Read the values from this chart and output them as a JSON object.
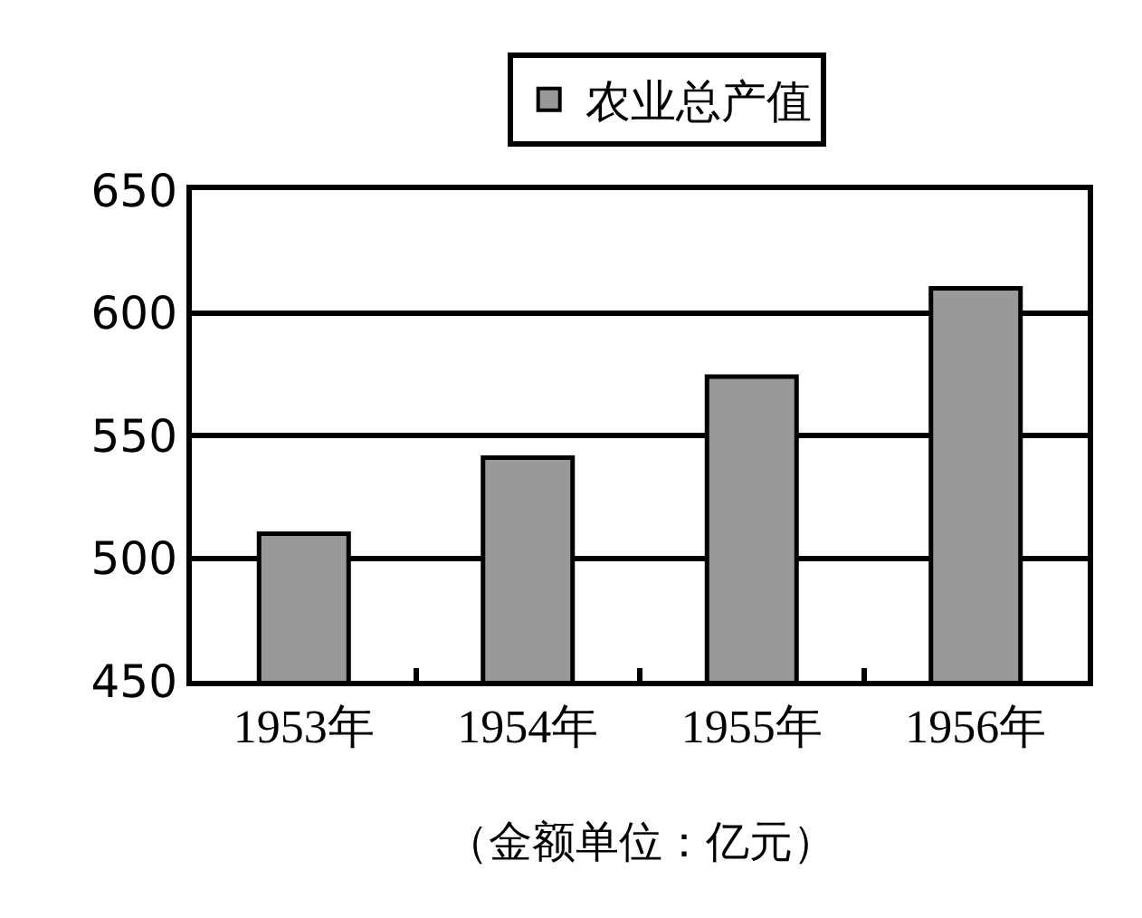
{
  "chart_data": {
    "type": "bar",
    "categories": [
      "1953年",
      "1954年",
      "1955年",
      "1956年"
    ],
    "series": [
      {
        "name": "农业总产值",
        "color": "#999999",
        "values": [
          510,
          541,
          574,
          610
        ]
      }
    ],
    "ylim": [
      450,
      650
    ],
    "yticks": [
      450,
      500,
      550,
      600,
      650
    ],
    "grid": "y",
    "legend": "top",
    "annotations": [
      "（金额单位：亿元）"
    ]
  }
}
